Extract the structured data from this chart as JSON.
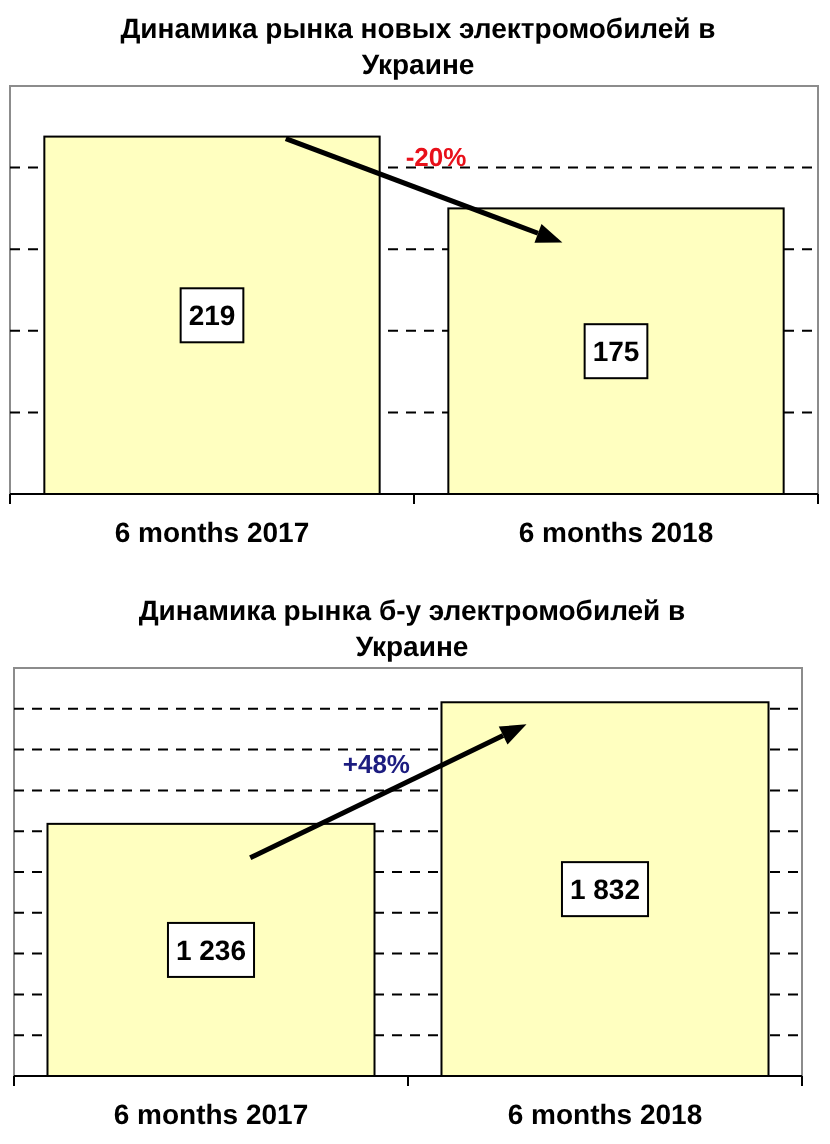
{
  "chart_data": [
    {
      "type": "bar",
      "title": "Динамика рынка новых электромобилей в Украине",
      "categories": [
        "6 months 2017",
        "6 months 2018"
      ],
      "values": [
        219,
        175
      ],
      "color": "#ffffc0",
      "ylim": [
        0,
        250
      ],
      "yticks": [
        {
          "value": 50,
          "label": null
        },
        {
          "value": 100,
          "label": null
        },
        {
          "value": 150,
          "label": null
        },
        {
          "value": 200,
          "label": null
        }
      ],
      "grid": "y",
      "tick_labels": "x",
      "data_labels": true,
      "annotations": [
        "-20%"
      ]
    },
    {
      "type": "bar",
      "title": "Динамика рынка б-у электромобилей в Украине",
      "categories": [
        "6 months 2017",
        "6 months 2018"
      ],
      "values": [
        1236,
        1832
      ],
      "value_labels": [
        "1 236",
        "1 832"
      ],
      "color": "#ffffc0",
      "ylim": [
        0,
        2000
      ],
      "yticks": [
        {
          "value": 200,
          "label": null
        },
        {
          "value": 400,
          "label": null
        },
        {
          "value": 600,
          "label": null
        },
        {
          "value": 800,
          "label": null
        },
        {
          "value": 1000,
          "label": null
        },
        {
          "value": 1200,
          "label": null
        },
        {
          "value": 1400,
          "label": null
        },
        {
          "value": 1600,
          "label": null
        },
        {
          "value": 1800,
          "label": null
        }
      ],
      "grid": "y",
      "tick_labels": "x",
      "annotations": [
        "+48%"
      ]
    }
  ]
}
